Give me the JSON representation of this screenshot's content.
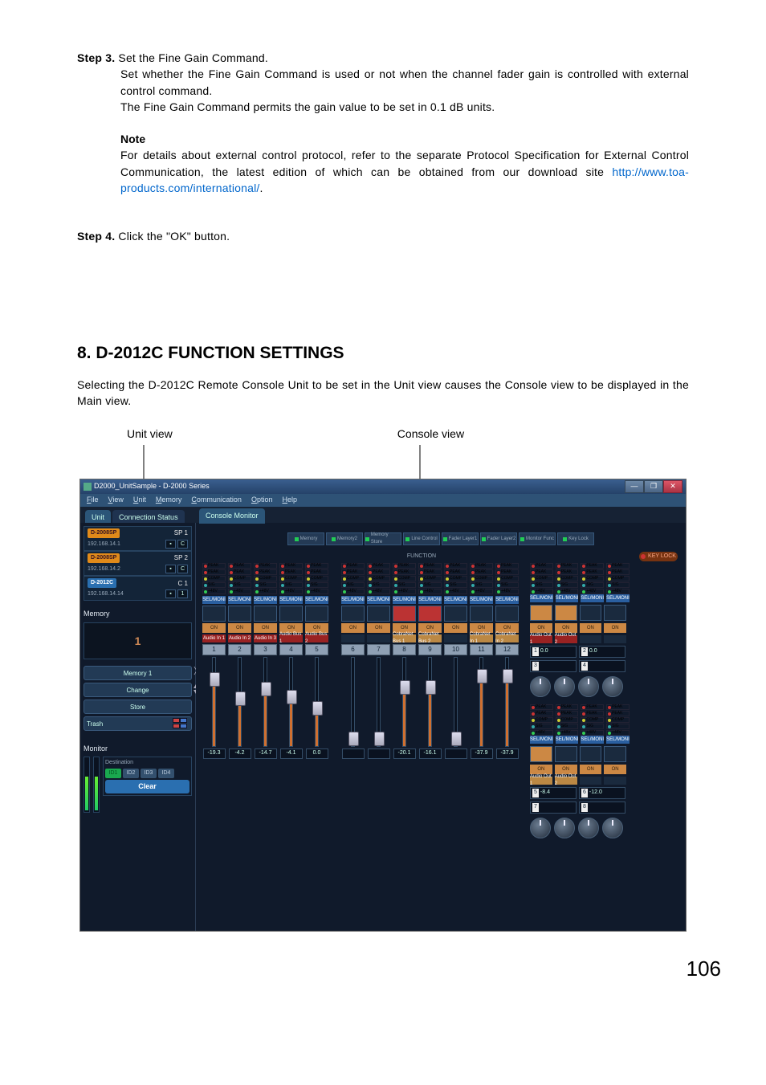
{
  "step3": {
    "label": "Step 3.",
    "title": "Set the Fine Gain Command.",
    "line1": "Set whether the Fine Gain Command is used or not when the channel fader gain is controlled with external control command.",
    "line2": "The Fine Gain Command permits the gain value to be set in 0.1 dB units."
  },
  "note": {
    "label": "Note",
    "body_pre": "For details about external control protocol, refer to the separate Protocol Specification for External Control Communication, the latest edition of which can be obtained from our download site ",
    "link_text": "http://www.toa-products.com/international/",
    "body_post": "."
  },
  "step4": {
    "label": "Step 4.",
    "title": "Click the \"OK\" button."
  },
  "section": {
    "heading": "8. D-2012C FUNCTION SETTINGS",
    "text": "Selecting the D-2012C Remote Console Unit to be set in the Unit view causes the Console view to be displayed in the Main view."
  },
  "labels": {
    "unit_view": "Unit view",
    "console_view": "Console view"
  },
  "screenshot": {
    "window_title": "D2000_UnitSample - D-2000 Series",
    "menu": [
      "File",
      "View",
      "Unit",
      "Memory",
      "Communication",
      "Option",
      "Help"
    ],
    "left_tabs": {
      "unit": "Unit",
      "conn": "Connection Status"
    },
    "console_tab": "Console Monitor",
    "units": [
      {
        "badge": "D-2008SP",
        "badge_cls": "orange",
        "name": "SP 1",
        "ip": "192.168.14.1",
        "c": "C"
      },
      {
        "badge": "D-2008SP",
        "badge_cls": "orange",
        "name": "SP 2",
        "ip": "192.168.14.2",
        "c": "C"
      },
      {
        "badge": "D-2012C",
        "badge_cls": "blue",
        "name": "C 1",
        "ip": "192.168.14.14",
        "c": "1"
      }
    ],
    "memory": {
      "label": "Memory",
      "current": "1",
      "row_label": "Memory 1",
      "change": "Change",
      "store": "Store",
      "trash": "Trash"
    },
    "monitor": {
      "label": "Monitor",
      "dest_label": "Destination",
      "ids": [
        "ID1",
        "ID2",
        "ID3",
        "ID4"
      ],
      "clear": "Clear"
    },
    "top_btns": [
      "Memory",
      "Memory2",
      "Memory Store",
      "Line Control",
      "Fader Layer1",
      "Fader Layer2",
      "Monitor Func",
      "Key Lock"
    ],
    "function_label": "FUNCTION",
    "keylock": "KEY LOCK",
    "channels": [
      1,
      2,
      3,
      4,
      5,
      6,
      7,
      8,
      9,
      10,
      11,
      12
    ],
    "knob_positions": [
      82,
      58,
      70,
      60,
      46,
      0,
      0,
      72,
      72,
      0,
      86,
      86
    ],
    "values": [
      "-19.3",
      "-4.2",
      "-14.7",
      "-4.1",
      "0.0",
      "",
      "",
      "-20.1",
      "-16.1",
      "",
      "-37.9",
      "-37.9"
    ],
    "in_labels": [
      "Audio In 1",
      "Audio In 2",
      "Audio In 3",
      "Audio Bus 1",
      "Audio Bus 2",
      "",
      "",
      "CobraNet Bus 1",
      "CobraNet Bus 2",
      "",
      "CobraNet In 1",
      "CobraNet In 2"
    ],
    "right": {
      "outs": [
        "Audio Out 1",
        "Audio Out 2"
      ],
      "disp": [
        {
          "n": "1",
          "v": "0.0"
        },
        {
          "n": "2",
          "v": "0.0"
        },
        {
          "n": "3",
          "v": ""
        },
        {
          "n": "4",
          "v": ""
        },
        {
          "n": "5",
          "v": "-8.4"
        },
        {
          "n": "6",
          "v": "-12.0"
        },
        {
          "n": "7",
          "v": ""
        },
        {
          "n": "8",
          "v": ""
        }
      ]
    },
    "colors": {
      "bg": "#162234",
      "pane": "#101a2b",
      "accent_orange": "#c84",
      "accent_blue": "#2a6fb0",
      "accent_green": "#1aa84f"
    }
  },
  "page_number": "106"
}
